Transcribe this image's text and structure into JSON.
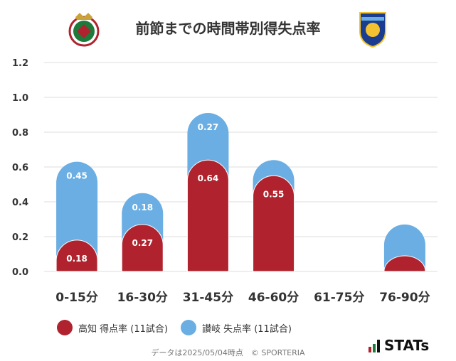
{
  "header": {
    "title": "前節までの時間帯別得失点率"
  },
  "chart_data": {
    "type": "bar",
    "categories": [
      "0-15分",
      "16-30分",
      "31-45分",
      "46-60分",
      "61-75分",
      "76-90分"
    ],
    "series": [
      {
        "name": "高知 得点率 (11試合)",
        "values": [
          0.18,
          0.27,
          0.64,
          0.55,
          0,
          0.09
        ],
        "color": "#b0232e"
      },
      {
        "name": "讃岐 失点率 (11試合)",
        "values": [
          0.45,
          0.18,
          0.27,
          0.09,
          0,
          0.18
        ],
        "color": "#6aaee3"
      }
    ],
    "data_labels": [
      [
        "0.18",
        "0.27",
        "0.64",
        "0.55",
        "",
        ""
      ],
      [
        "0.45",
        "0.18",
        "0.27",
        "",
        "",
        ""
      ]
    ],
    "y_ticks": [
      "0.0",
      "0.2",
      "0.4",
      "0.6",
      "0.8",
      "1.0",
      "1.2"
    ],
    "ylim": [
      0,
      1.2
    ],
    "grid": true,
    "legend_position": "bottom-left",
    "stacked": true
  },
  "footer": {
    "note": "データは2025/05/04時点　© SPORTERIA",
    "brand": "STATs"
  }
}
